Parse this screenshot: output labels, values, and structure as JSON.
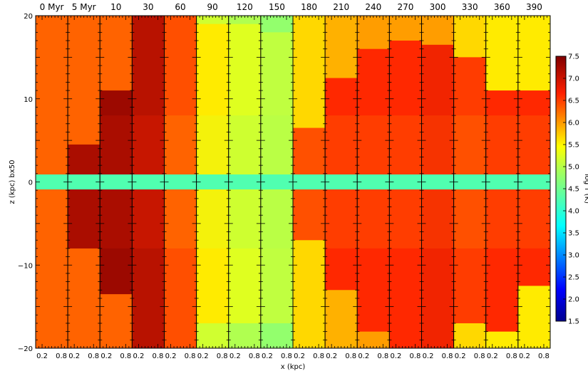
{
  "chart_data": {
    "type": "heatmap",
    "panel_titles": [
      "0 Myr",
      "5 Myr",
      "10",
      "30",
      "60",
      "90",
      "120",
      "150",
      "180",
      "210",
      "240",
      "270",
      "300",
      "330",
      "360",
      "390"
    ],
    "xlabel": "x (kpc)",
    "ylabel": "z (kpc) bx50",
    "x_tick_labels": [
      "0.2",
      "0.8"
    ],
    "y_ticks": [
      "20",
      "10",
      "0",
      "−10",
      "−20"
    ],
    "ylim": [
      -20,
      20
    ],
    "colorbar": {
      "label": "log T (K)",
      "ticks": [
        "7.5",
        "7.0",
        "6.5",
        "6.0",
        "5.5",
        "5.0",
        "4.5",
        "4.0",
        "3.5",
        "3.0",
        "2.5",
        "2.0",
        "1.5"
      ],
      "range": [
        1.5,
        7.5
      ]
    },
    "panels": [
      {
        "background_logT": 6.3,
        "hot_extent_kpc": [
          0,
          0
        ],
        "hot_logT": 6.3
      },
      {
        "background_logT": 6.3,
        "hot_extent_kpc": [
          -8,
          4.5
        ],
        "hot_logT": 7.3
      },
      {
        "background_logT": 6.3,
        "hot_extent_kpc": [
          -13.5,
          11
        ],
        "hot_logT": 7.3
      },
      {
        "background_logT": 6.0,
        "hot_extent_kpc": [
          -20,
          20
        ],
        "hot_logT": 7.1
      },
      {
        "background_logT": 5.8,
        "hot_extent_kpc": [
          -20,
          20
        ],
        "hot_logT": 6.4
      },
      {
        "background_logT": 5.2,
        "hot_extent_kpc": [
          -17,
          19
        ],
        "hot_logT": 5.6
      },
      {
        "background_logT": 5.0,
        "hot_extent_kpc": [
          -17,
          19
        ],
        "hot_logT": 5.3
      },
      {
        "background_logT": 4.8,
        "hot_extent_kpc": [
          -17,
          18
        ],
        "hot_logT": 5.1
      },
      {
        "background_logT": 5.7,
        "hot_extent_kpc": [
          -7,
          6.5
        ],
        "hot_logT": 6.5
      },
      {
        "background_logT": 5.9,
        "hot_extent_kpc": [
          -13,
          12.5
        ],
        "hot_logT": 6.6
      },
      {
        "background_logT": 6.0,
        "hot_extent_kpc": [
          -18,
          16
        ],
        "hot_logT": 6.6
      },
      {
        "background_logT": 6.0,
        "hot_extent_kpc": [
          -20,
          17
        ],
        "hot_logT": 6.6
      },
      {
        "background_logT": 6.0,
        "hot_extent_kpc": [
          -20,
          16.5
        ],
        "hot_logT": 6.7
      },
      {
        "background_logT": 5.7,
        "hot_extent_kpc": [
          -17,
          15
        ],
        "hot_logT": 6.5
      },
      {
        "background_logT": 5.6,
        "hot_extent_kpc": [
          -18,
          11
        ],
        "hot_logT": 6.6
      },
      {
        "background_logT": 5.6,
        "hot_extent_kpc": [
          -12.5,
          11
        ],
        "hot_logT": 6.6
      }
    ],
    "disk_logT": 4.3,
    "disk_halfwidth_kpc": 0.9
  }
}
